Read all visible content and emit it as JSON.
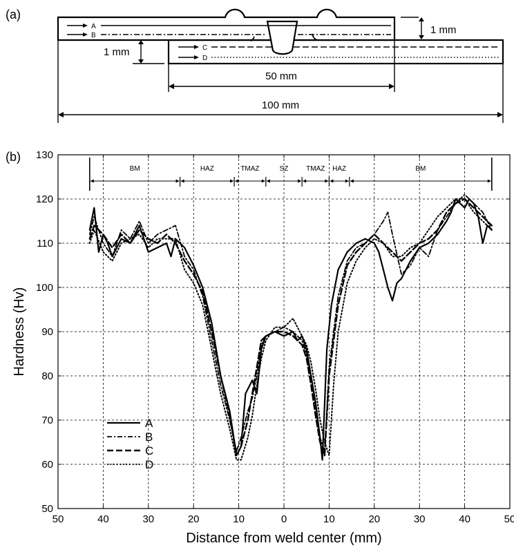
{
  "panel_a": {
    "label": "(a)",
    "traverses": [
      {
        "name": "A",
        "dash": "none"
      },
      {
        "name": "B",
        "dash": "dashdot"
      },
      {
        "name": "C",
        "dash": "dash"
      },
      {
        "name": "D",
        "dash": "dot"
      }
    ],
    "dim_thickness_upper": "1 mm",
    "dim_thickness_lower": "1 mm",
    "dim_overlap": "50 mm",
    "dim_total": "100 mm"
  },
  "panel_b": {
    "label": "(b)"
  },
  "chart_data": {
    "type": "line",
    "xlabel": "Distance from weld center (mm)",
    "ylabel": "Hardness (Hv)",
    "xlim": [
      -50,
      50
    ],
    "ylim": [
      50,
      130
    ],
    "x_ticks": [
      -50,
      -40,
      -30,
      -20,
      -10,
      0,
      10,
      20,
      30,
      40,
      50
    ],
    "x_tick_labels": [
      "50",
      "40",
      "30",
      "20",
      "10",
      "0",
      "10",
      "20",
      "30",
      "40",
      "50"
    ],
    "y_ticks": [
      50,
      60,
      70,
      80,
      90,
      100,
      110,
      120,
      130
    ],
    "y_tick_labels": [
      "50",
      "60",
      "70",
      "80",
      "90",
      "100",
      "110",
      "120",
      "130"
    ],
    "grid": true,
    "legend_position": "bottom-left",
    "zones": [
      {
        "label": "BM",
        "from": -43,
        "to": -23
      },
      {
        "label": "HAZ",
        "from": -23,
        "to": -11
      },
      {
        "label": "TMAZ",
        "from": -11,
        "to": -4
      },
      {
        "label": "SZ",
        "from": -4,
        "to": 4
      },
      {
        "label": "TMAZ",
        "from": 4,
        "to": 10
      },
      {
        "label": "HAZ",
        "from": 10,
        "to": 14.5
      },
      {
        "label": "BM",
        "from": 14.5,
        "to": 46
      }
    ],
    "series": [
      {
        "name": "A",
        "dash": "solid",
        "x": [
          -43,
          -42,
          -41,
          -40,
          -39,
          -38,
          -36,
          -34,
          -32,
          -30,
          -28,
          -26,
          -25,
          -24,
          -22,
          -20,
          -18,
          -16,
          -14,
          -12,
          -10.5,
          -9.5,
          -8.5,
          -7,
          -6,
          -5,
          -4,
          -2,
          0,
          2,
          3,
          4,
          5,
          6,
          7,
          8,
          8.5,
          9.5,
          10.5,
          12,
          14,
          16,
          18,
          20,
          21,
          22,
          23,
          24,
          25,
          26,
          28,
          30,
          32,
          34,
          36,
          37,
          38,
          40,
          41,
          42,
          43,
          44,
          45,
          46
        ],
        "y": [
          113,
          118,
          108,
          112,
          110,
          107,
          111,
          110,
          114,
          108,
          109,
          110,
          107,
          111,
          109,
          105,
          100,
          92,
          80,
          72,
          62,
          64,
          76,
          79,
          76,
          86,
          89,
          90,
          89,
          90,
          88,
          89,
          86,
          80,
          74,
          66,
          61,
          86,
          96,
          104,
          108,
          110,
          111,
          110,
          108,
          104,
          100,
          97,
          101,
          102,
          106,
          109,
          110,
          112,
          115,
          117,
          120,
          118,
          120,
          119,
          116,
          110,
          114,
          113
        ]
      },
      {
        "name": "B",
        "dash": "dashdot",
        "x": [
          -43,
          -42,
          -40,
          -38,
          -36,
          -34,
          -32,
          -30,
          -28,
          -26,
          -24,
          -22,
          -20,
          -18,
          -16,
          -14,
          -12,
          -10.5,
          -9.5,
          -8,
          -7,
          -6,
          -5,
          -4,
          -2,
          0,
          2,
          3,
          4,
          5,
          6,
          7,
          8,
          9,
          10,
          12,
          14,
          16,
          18,
          20,
          22,
          23,
          24,
          26,
          28,
          30,
          32,
          34,
          36,
          38,
          40,
          42,
          44,
          46
        ],
        "y": [
          112,
          116,
          110,
          107,
          113,
          111,
          115,
          110,
          112,
          113,
          114,
          107,
          104,
          98,
          88,
          78,
          70,
          63,
          66,
          72,
          75,
          80,
          87,
          89,
          90,
          91,
          90,
          89,
          88,
          85,
          80,
          73,
          66,
          63,
          82,
          98,
          106,
          109,
          110,
          112,
          115,
          117,
          112,
          103,
          105,
          109,
          107,
          113,
          116,
          119,
          121,
          119,
          117,
          113
        ]
      },
      {
        "name": "C",
        "dash": "dash",
        "x": [
          -43,
          -42,
          -40,
          -38,
          -36,
          -34,
          -32,
          -30,
          -28,
          -26,
          -24,
          -22,
          -20,
          -18,
          -16,
          -14,
          -12,
          -10.5,
          -9.5,
          -8,
          -7,
          -6,
          -5,
          -4,
          -2,
          0,
          2,
          3,
          4,
          5,
          6,
          7,
          8,
          9,
          10,
          12,
          14,
          16,
          18,
          20,
          22,
          24,
          26,
          28,
          30,
          32,
          34,
          36,
          38,
          40,
          42,
          44,
          46
        ],
        "y": [
          111,
          114,
          112,
          109,
          112,
          110,
          113,
          111,
          110,
          112,
          110,
          106,
          103,
          99,
          90,
          80,
          71,
          62,
          64,
          70,
          76,
          82,
          88,
          89,
          90,
          90,
          89,
          88,
          87,
          84,
          78,
          71,
          65,
          62,
          80,
          96,
          105,
          108,
          110,
          112,
          110,
          108,
          106,
          108,
          110,
          111,
          113,
          117,
          119,
          120,
          118,
          116,
          114
        ]
      },
      {
        "name": "D",
        "dash": "dotted",
        "x": [
          -43,
          -42,
          -40,
          -38,
          -36,
          -34,
          -32,
          -30,
          -28,
          -26,
          -24,
          -22,
          -20,
          -18,
          -16,
          -14,
          -12,
          -10.5,
          -9.5,
          -8,
          -7,
          -6,
          -5,
          -4,
          -2,
          0,
          2,
          3,
          4,
          5,
          6,
          7,
          8,
          9,
          10,
          11,
          12,
          14,
          16,
          18,
          20,
          22,
          24,
          26,
          28,
          30,
          32,
          34,
          36,
          38,
          40,
          42,
          44,
          46
        ],
        "y": [
          110,
          113,
          108,
          106,
          110,
          111,
          112,
          109,
          111,
          111,
          111,
          104,
          101,
          96,
          86,
          76,
          68,
          61,
          61,
          66,
          71,
          78,
          84,
          88,
          91,
          91,
          93,
          91,
          89,
          87,
          83,
          77,
          70,
          65,
          62,
          78,
          90,
          101,
          106,
          109,
          111,
          110,
          107,
          107,
          109,
          110,
          113,
          116,
          118,
          120,
          120,
          117,
          115,
          113
        ]
      }
    ]
  }
}
